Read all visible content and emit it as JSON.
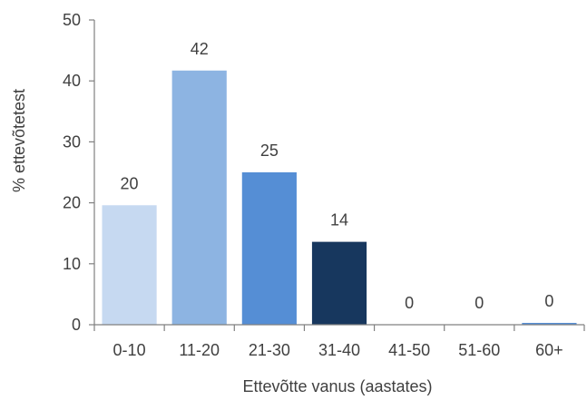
{
  "chart_data": {
    "type": "bar",
    "title": "",
    "xlabel": "Ettevõtte vanus (aastates)",
    "ylabel": "% ettevõtetest",
    "categories": [
      "0-10",
      "11-20",
      "21-30",
      "31-40",
      "41-50",
      "51-60",
      "60+"
    ],
    "values": [
      19.6,
      41.7,
      25,
      13.6,
      0,
      0,
      0.3
    ],
    "data_labels": [
      "20",
      "42",
      "25",
      "14",
      "0",
      "0",
      "0"
    ],
    "bar_colors": [
      "#c6d9f1",
      "#8db4e2",
      "#558ed5",
      "#17375e",
      "#558ed5",
      "#558ed5",
      "#558ed5"
    ],
    "ylim": [
      0,
      50
    ],
    "yticks": [
      "0",
      "10",
      "20",
      "30",
      "40",
      "50"
    ],
    "legend": "none",
    "grid": false
  }
}
